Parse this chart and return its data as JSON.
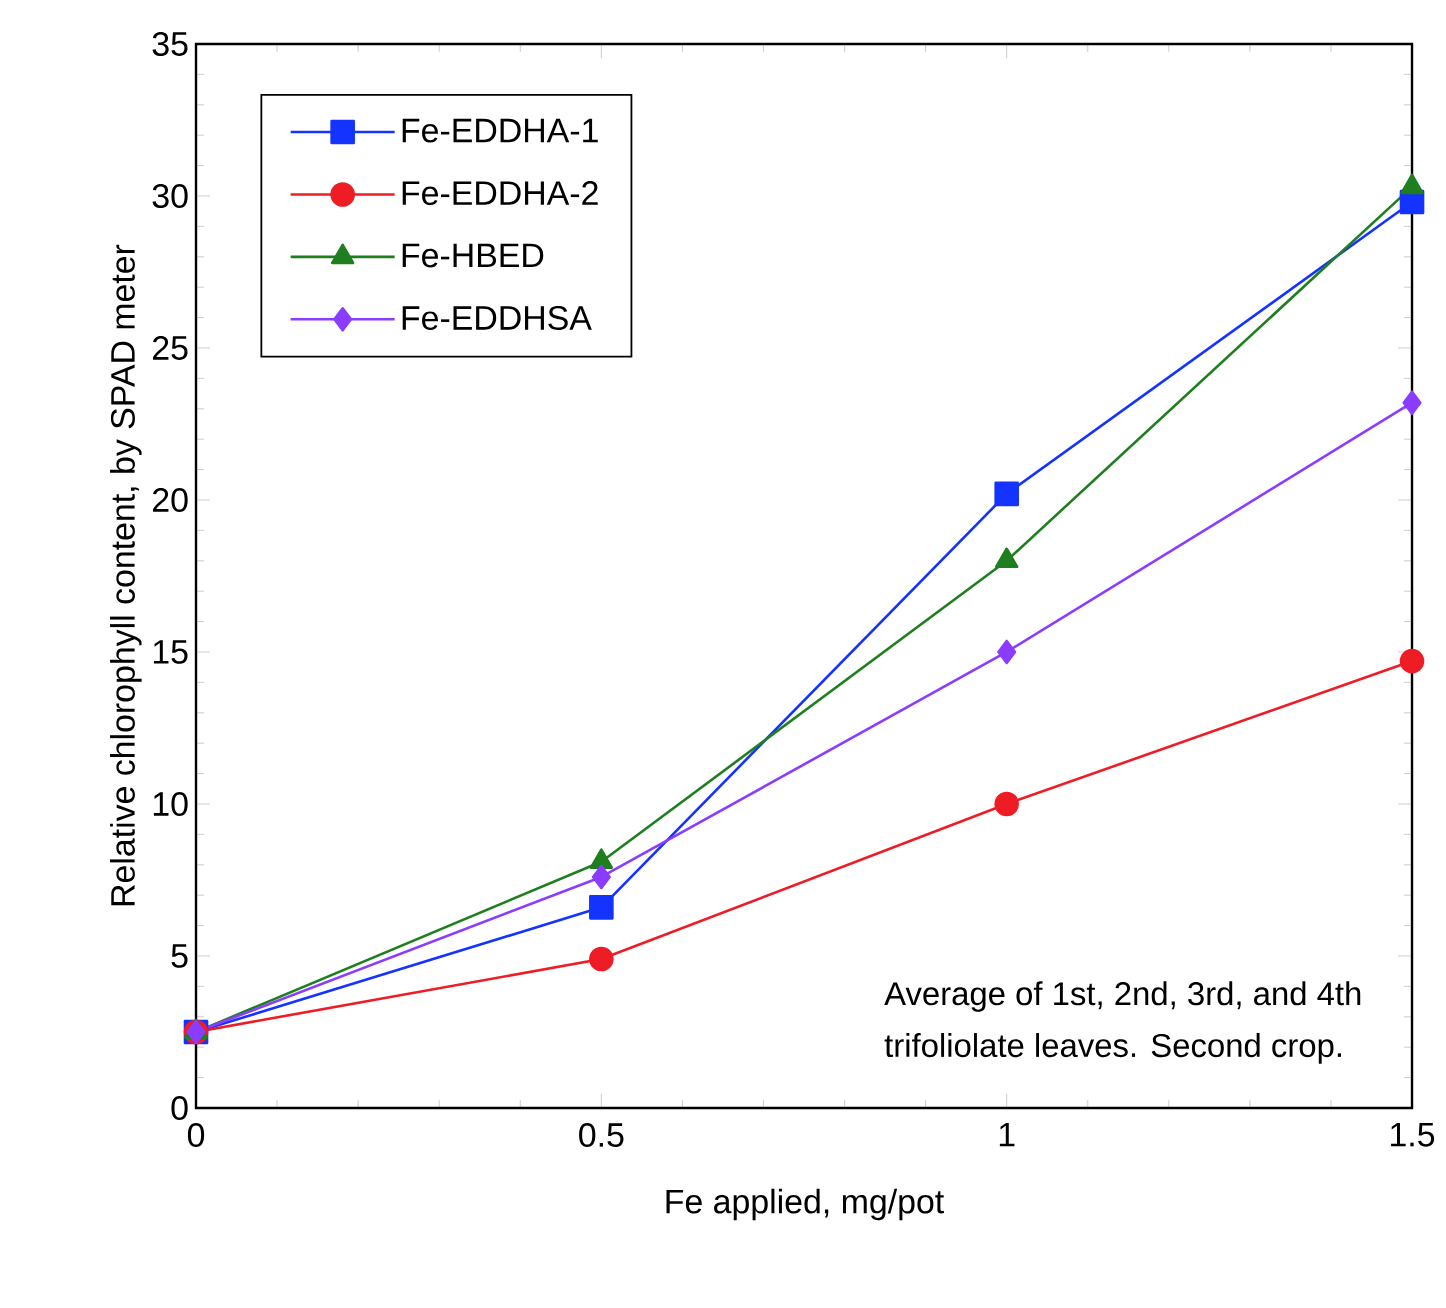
{
  "chart_data": {
    "type": "line",
    "xlabel": "Fe applied, mg/pot",
    "ylabel": "Relative chlorophyll content, by SPAD meter",
    "x": [
      0,
      0.5,
      1,
      1.5
    ],
    "series": [
      {
        "name": "Fe-EDDHA-1",
        "color": "#1433ff",
        "marker": "square",
        "values": [
          2.5,
          6.6,
          20.2,
          29.8
        ]
      },
      {
        "name": "Fe-EDDHA-2",
        "color": "#ee1c25",
        "marker": "circle",
        "values": [
          2.5,
          4.9,
          10.0,
          14.7
        ]
      },
      {
        "name": "Fe-HBED",
        "color": "#1f7f1f",
        "marker": "triangle",
        "values": [
          2.5,
          8.1,
          18.0,
          30.3
        ]
      },
      {
        "name": "Fe-EDDHSA",
        "color": "#8a3cff",
        "marker": "diamond",
        "values": [
          2.5,
          7.6,
          15.0,
          23.2
        ]
      }
    ],
    "xlim": [
      0,
      1.5
    ],
    "xticks": [
      0,
      0.5,
      1,
      1.5
    ],
    "ylim": [
      0,
      35
    ],
    "yticks": [
      0,
      5,
      10,
      15,
      20,
      25,
      30,
      35
    ],
    "legend": "top left",
    "grid": false,
    "line_style": "solid",
    "annotations": [
      "Average of 1st, 2nd, 3rd, and 4th",
      "trifoliolate leaves.  Second crop."
    ]
  }
}
